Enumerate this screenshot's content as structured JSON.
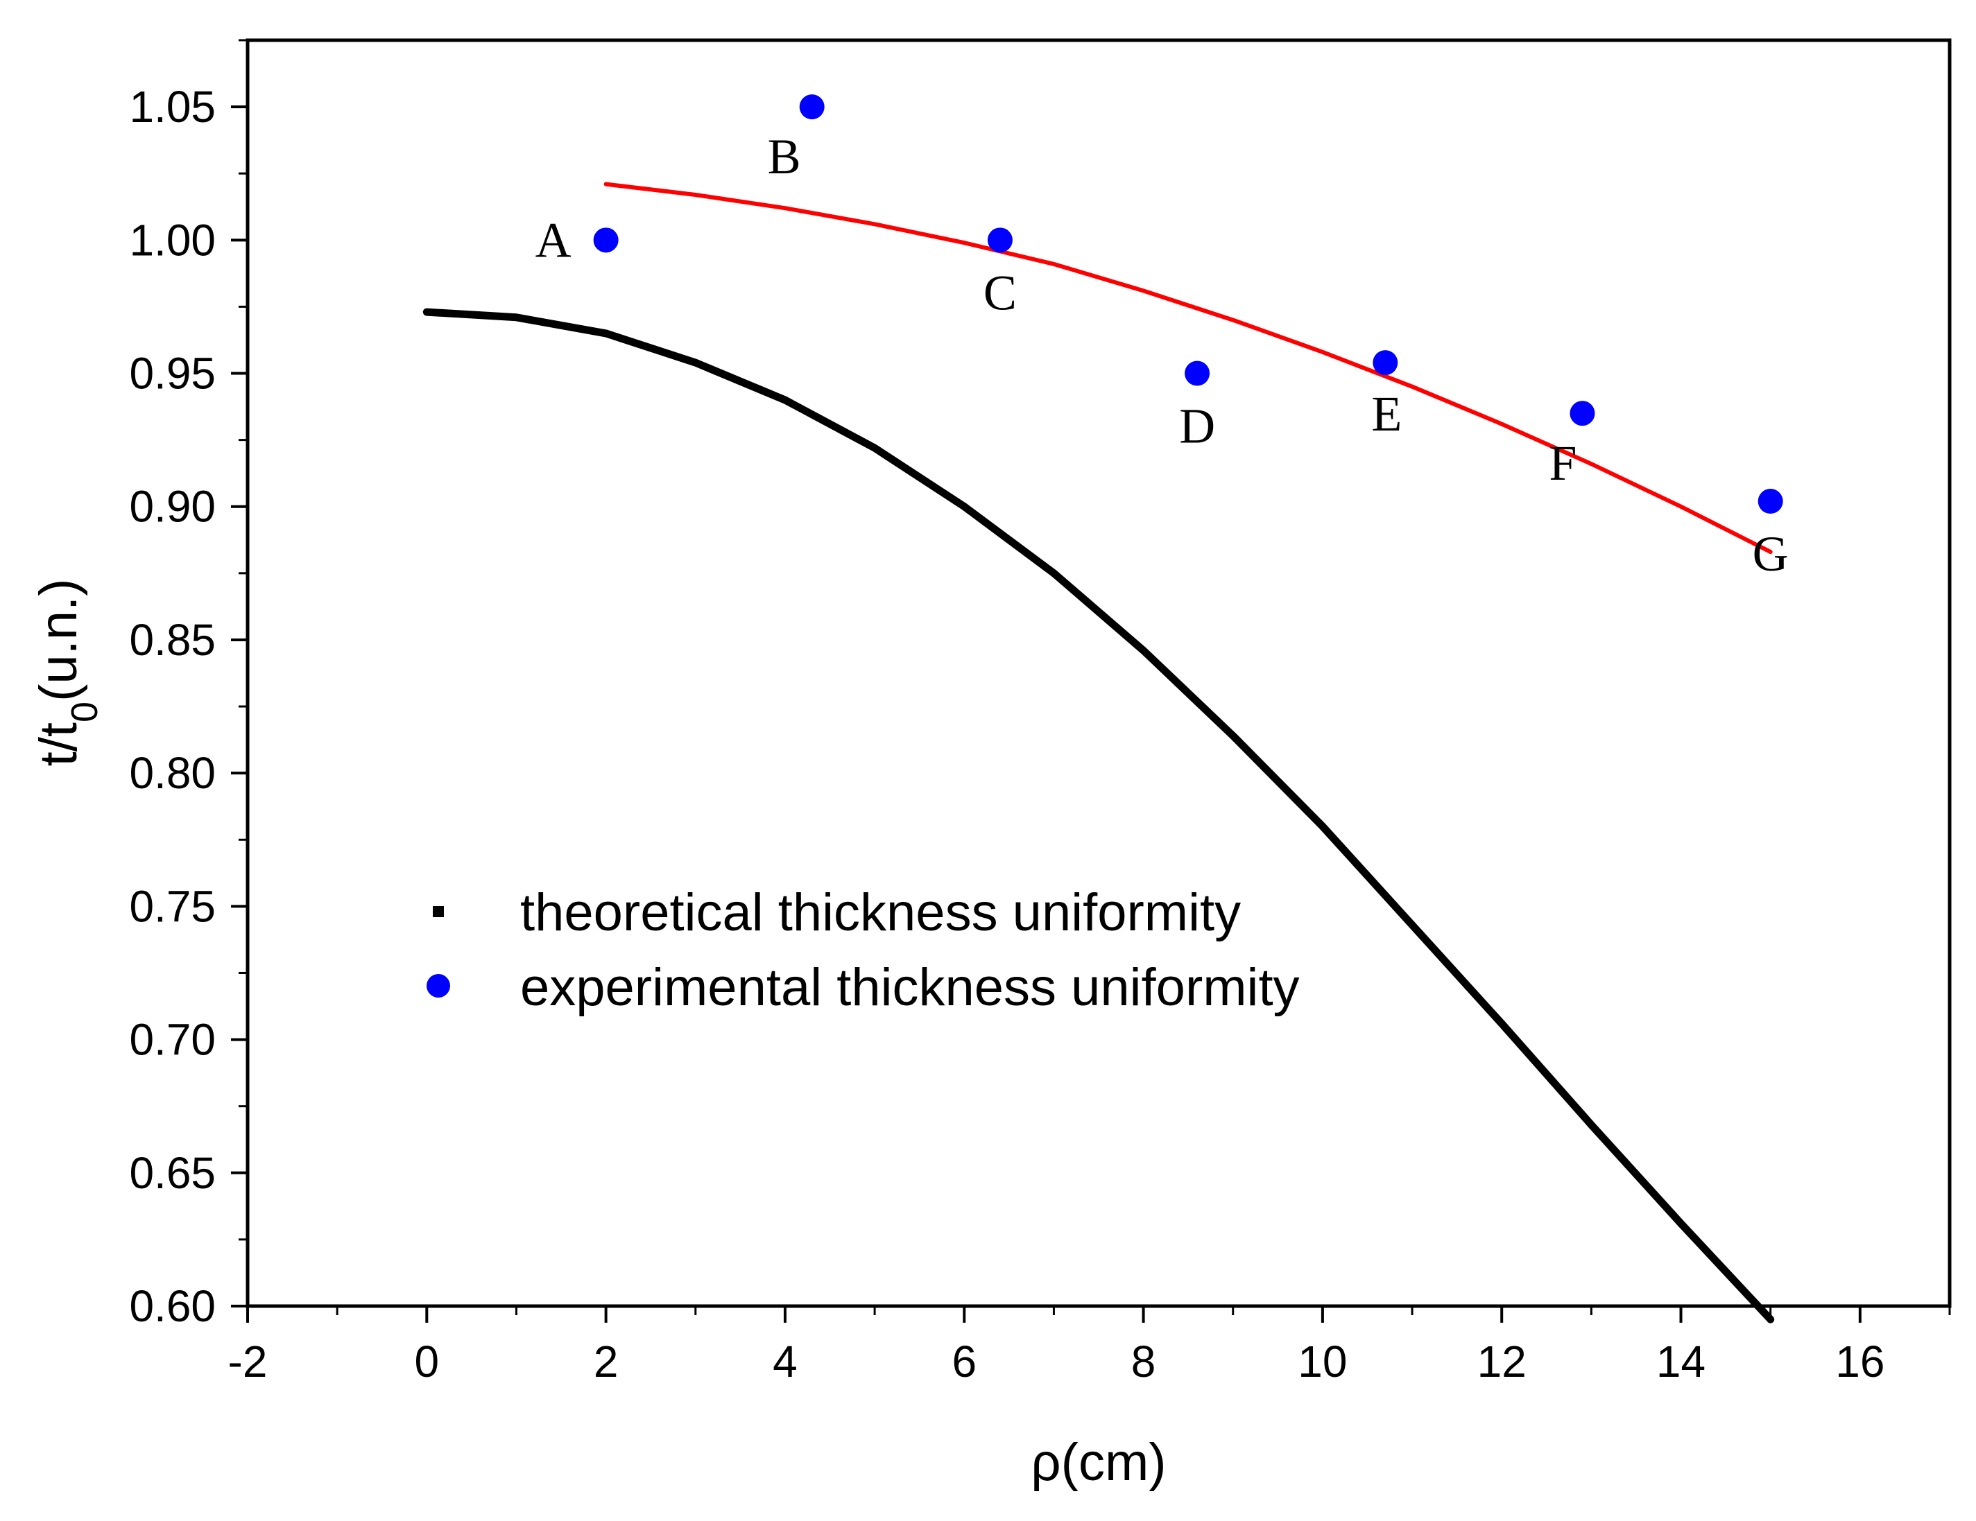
{
  "chart_data": {
    "type": "scatter",
    "title": "",
    "xlabel": "ρ(cm)",
    "ylabel": {
      "main": "t/t",
      "sub": "0",
      "tail": "(u.n.)"
    },
    "xlim": [
      -2,
      17
    ],
    "ylim": [
      0.6,
      1.075
    ],
    "x_ticks": [
      -2,
      0,
      2,
      4,
      6,
      8,
      10,
      12,
      14,
      16
    ],
    "x_tick_labels": [
      "-2",
      "0",
      "2",
      "4",
      "6",
      "8",
      "10",
      "12",
      "14",
      "16"
    ],
    "y_ticks": [
      0.6,
      0.65,
      0.7,
      0.75,
      0.8,
      0.85,
      0.9,
      0.95,
      1.0,
      1.05
    ],
    "y_tick_labels": [
      "0.60",
      "0.65",
      "0.70",
      "0.75",
      "0.80",
      "0.85",
      "0.90",
      "0.95",
      "1.00",
      "1.05"
    ],
    "grid": false,
    "legend_placement": "lower-left",
    "series": [
      {
        "name": "theoretical thickness uniformity",
        "kind": "line",
        "color": "#000000",
        "x": [
          0,
          1,
          2,
          3,
          4,
          5,
          6,
          7,
          8,
          9,
          10,
          11,
          12,
          13,
          14,
          15
        ],
        "y": [
          0.973,
          0.971,
          0.965,
          0.954,
          0.94,
          0.922,
          0.9,
          0.875,
          0.846,
          0.814,
          0.78,
          0.743,
          0.706,
          0.668,
          0.631,
          0.595
        ]
      },
      {
        "name": "experimental thickness uniformity",
        "kind": "scatter",
        "color": "#0000ff",
        "x": [
          2.0,
          4.3,
          6.4,
          8.6,
          10.7,
          12.9,
          15.0
        ],
        "y": [
          1.0,
          1.05,
          1.0,
          0.95,
          0.954,
          0.935,
          0.902
        ],
        "labels": [
          "A",
          "B",
          "C",
          "D",
          "E",
          "F",
          "G"
        ]
      },
      {
        "kind": "line",
        "color": "#ff0000",
        "x": [
          2,
          3,
          4,
          5,
          6,
          7,
          8,
          9,
          10,
          11,
          12,
          13,
          14,
          15
        ],
        "y": [
          1.021,
          1.017,
          1.012,
          1.006,
          0.999,
          0.991,
          0.981,
          0.97,
          0.958,
          0.945,
          0.931,
          0.916,
          0.9,
          0.883
        ]
      }
    ],
    "legend": [
      {
        "label": "theoretical thickness uniformity",
        "marker": "square",
        "color": "#000000"
      },
      {
        "label": "experimental thickness uniformity",
        "marker": "circle",
        "color": "#0000ff"
      }
    ]
  }
}
